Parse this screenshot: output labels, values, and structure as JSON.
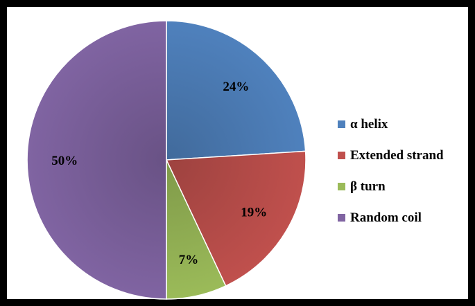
{
  "chart_data": {
    "type": "pie",
    "title": "",
    "slices": [
      {
        "label": "α helix",
        "value": 24,
        "display": "24%",
        "color": "#4F81BD"
      },
      {
        "label": "Extended strand",
        "value": 19,
        "display": "19%",
        "color": "#C0504D"
      },
      {
        "label": "β turn",
        "value": 7,
        "display": "7%",
        "color": "#9BBB59"
      },
      {
        "label": "Random coil",
        "value": 50,
        "display": "50%",
        "color": "#8064A2"
      }
    ],
    "legend_position": "right"
  }
}
